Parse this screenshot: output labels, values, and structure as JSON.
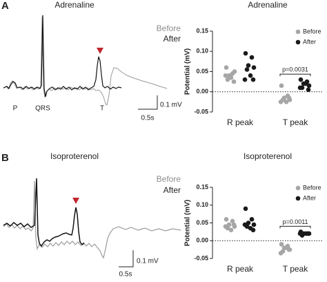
{
  "chart_data": [
    {
      "type": "strip",
      "title": "Adrenaline",
      "ylabel": "Potential (mV)",
      "categories": [
        "R peak",
        "T peak"
      ],
      "series": [
        {
          "name": "Before",
          "color": "#a6a6a6",
          "values": [
            [
              0.06,
              0.045,
              0.04,
              0.05,
              0.03,
              0.035,
              0.025,
              0.04
            ],
            [
              0.015,
              -0.01,
              -0.015,
              -0.02,
              -0.02,
              -0.025,
              -0.015,
              -0.025
            ]
          ]
        },
        {
          "name": "After",
          "color": "#1a1a1a",
          "values": [
            [
              0.095,
              0.085,
              0.065,
              0.06,
              0.055,
              0.04,
              0.03,
              0.03
            ],
            [
              0.03,
              0.025,
              0.02,
              0.015,
              0.01,
              0.02,
              0.005,
              0.01
            ]
          ]
        }
      ],
      "ylim": [
        -0.05,
        0.15
      ],
      "yticks": [
        -0.05,
        {
          "value": 0,
          "label": "0.00"
        },
        0.05,
        {
          "value": 0.1,
          "label": "0.10"
        },
        0.15
      ],
      "zero_line": true,
      "annotation": "p=0.0031",
      "legend": "upper right"
    },
    {
      "type": "strip",
      "title": "Isoproterenol",
      "ylabel": "Potential (mV)",
      "categories": [
        "R peak",
        "T peak"
      ],
      "series": [
        {
          "name": "Before",
          "color": "#a6a6a6",
          "values": [
            [
              0.06,
              0.055,
              0.045,
              0.04,
              0.035,
              0.03,
              0.045,
              0.04
            ],
            [
              -0.01,
              -0.015,
              -0.02,
              -0.025,
              -0.03,
              -0.02,
              -0.025,
              -0.035
            ]
          ]
        },
        {
          "name": "After",
          "color": "#1a1a1a",
          "values": [
            [
              0.09,
              0.06,
              0.05,
              0.045,
              0.04,
              0.035,
              0.03,
              0.045
            ],
            [
              0.025,
              0.02,
              0.02,
              0.02,
              0.015,
              0.02,
              0.02,
              0.02
            ]
          ]
        }
      ],
      "ylim": [
        -0.05,
        0.15
      ],
      "yticks": [
        -0.05,
        {
          "value": 0,
          "label": "0.00"
        },
        0.05,
        {
          "value": 0.1,
          "label": "0.10"
        },
        0.15
      ],
      "zero_line": true,
      "annotation": "p=0.0011",
      "legend": "upper right"
    }
  ],
  "traces": [
    {
      "panel": "A",
      "title": "Adrenaline",
      "before": "Before",
      "after": "After",
      "waves": [
        "P",
        "QRS",
        "T"
      ],
      "scale_y": "0.1 mV",
      "scale_x": "0.5s"
    },
    {
      "panel": "B",
      "title": "Isoproterenol",
      "before": "Before",
      "after": "After",
      "scale_y": "0.1 mV",
      "scale_x": "0.5s"
    }
  ]
}
